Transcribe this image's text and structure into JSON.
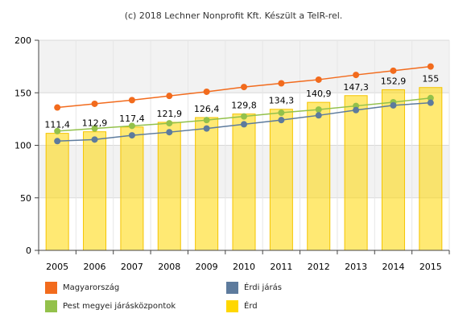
{
  "credit": "(c) 2018 Lechner Nonprofit Kft. Készült a TeIR-rel.",
  "chart_data": {
    "type": "bar",
    "categories": [
      "2005",
      "2006",
      "2007",
      "2008",
      "2009",
      "2010",
      "2011",
      "2012",
      "2013",
      "2014",
      "2015"
    ],
    "ylim": [
      0,
      200
    ],
    "yticks": [
      "0",
      "50",
      "100",
      "150",
      "200"
    ],
    "grid": true,
    "legend_position": "bottom",
    "bar_series": {
      "name": "Érd",
      "color": "#ffd700",
      "values": [
        111.4,
        112.9,
        117.4,
        121.9,
        126.4,
        129.8,
        134.3,
        140.9,
        147.3,
        152.9,
        155
      ],
      "labels": [
        "111,4",
        "112,9",
        "117,4",
        "121,9",
        "126,4",
        "129,8",
        "134,3",
        "140,9",
        "147,3",
        "152,9",
        "155"
      ]
    },
    "line_series": [
      {
        "name": "Magyarország",
        "color": "#f26b1d",
        "values": [
          136,
          139.5,
          143,
          147,
          151,
          155.5,
          159,
          162.5,
          167,
          171,
          175
        ]
      },
      {
        "name": "Pest megyei járásközpontok",
        "color": "#93c14b",
        "values": [
          113.5,
          116,
          118.5,
          121,
          124,
          127.5,
          131,
          134,
          137.5,
          141,
          145
        ]
      },
      {
        "name": "Érdi járás",
        "color": "#5d7b9d",
        "values": [
          104,
          105.5,
          109.5,
          112.5,
          116,
          120,
          124,
          128.5,
          133.5,
          138,
          140.5
        ]
      }
    ]
  },
  "legend": [
    {
      "label": "Magyarország",
      "color": "#f26b1d"
    },
    {
      "label": "Érdi járás",
      "color": "#5d7b9d"
    },
    {
      "label": "Pest megyei járásközpontok",
      "color": "#93c14b"
    },
    {
      "label": "Érd",
      "color": "#ffd700"
    }
  ]
}
